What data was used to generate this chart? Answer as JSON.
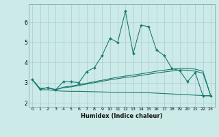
{
  "xlabel": "Humidex (Indice chaleur)",
  "xlim": [
    -0.5,
    23.5
  ],
  "ylim": [
    1.8,
    6.9
  ],
  "xticks": [
    0,
    1,
    2,
    3,
    4,
    5,
    6,
    7,
    8,
    9,
    10,
    11,
    12,
    13,
    14,
    15,
    16,
    17,
    18,
    19,
    20,
    21,
    22,
    23
  ],
  "yticks": [
    2,
    3,
    4,
    5,
    6
  ],
  "bg_color": "#cceae8",
  "grid_color": "#aaccca",
  "line_color": "#1a7a6e",
  "line1_x": [
    0,
    1,
    2,
    3,
    4,
    5,
    6,
    7,
    8,
    9,
    10,
    11,
    12,
    13,
    14,
    15,
    16,
    17,
    18,
    19,
    20,
    21,
    22,
    23
  ],
  "line1_y": [
    3.15,
    2.7,
    2.75,
    2.65,
    3.05,
    3.05,
    3.0,
    3.55,
    3.75,
    4.35,
    5.2,
    5.0,
    6.55,
    4.45,
    5.85,
    5.78,
    4.62,
    4.35,
    3.7,
    3.6,
    3.05,
    3.5,
    2.35,
    2.35
  ],
  "line2_x": [
    0,
    1,
    2,
    3,
    4,
    5,
    6,
    7,
    8,
    9,
    10,
    11,
    12,
    13,
    14,
    15,
    16,
    17,
    18,
    19,
    20,
    21,
    22,
    23
  ],
  "line2_y": [
    3.15,
    2.7,
    2.75,
    2.65,
    2.78,
    2.83,
    2.9,
    2.97,
    3.05,
    3.12,
    3.2,
    3.27,
    3.33,
    3.38,
    3.44,
    3.5,
    3.57,
    3.62,
    3.67,
    3.72,
    3.72,
    3.67,
    3.57,
    2.35
  ],
  "line3_x": [
    0,
    1,
    2,
    3,
    4,
    5,
    6,
    7,
    8,
    9,
    10,
    11,
    12,
    13,
    14,
    15,
    16,
    17,
    18,
    19,
    20,
    21,
    22,
    23
  ],
  "line3_y": [
    3.15,
    2.7,
    2.75,
    2.65,
    2.75,
    2.79,
    2.86,
    2.93,
    3.0,
    3.07,
    3.14,
    3.2,
    3.26,
    3.3,
    3.36,
    3.42,
    3.48,
    3.53,
    3.58,
    3.63,
    3.62,
    3.57,
    3.47,
    2.35
  ],
  "line4_x": [
    0,
    1,
    2,
    3,
    4,
    5,
    6,
    7,
    8,
    9,
    10,
    11,
    12,
    13,
    14,
    15,
    16,
    17,
    18,
    19,
    20,
    21,
    22,
    23
  ],
  "line4_y": [
    3.15,
    2.65,
    2.65,
    2.6,
    2.58,
    2.57,
    2.57,
    2.56,
    2.55,
    2.54,
    2.53,
    2.52,
    2.52,
    2.51,
    2.5,
    2.5,
    2.48,
    2.46,
    2.44,
    2.42,
    2.4,
    2.38,
    2.36,
    2.35
  ]
}
